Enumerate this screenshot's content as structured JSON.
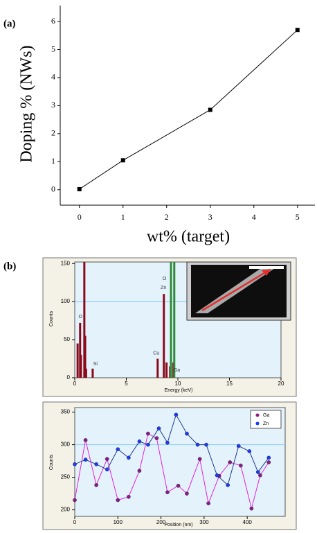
{
  "chart_data": [
    {
      "type": "line",
      "label": "(a)",
      "x_label": "wt% (target)",
      "y_label": "Doping % (NWs)",
      "x": [
        0,
        1,
        3,
        5
      ],
      "values": [
        0.02,
        1.05,
        2.85,
        5.7
      ],
      "color": "#000000",
      "xlim": [
        -0.44,
        5.4
      ],
      "ylim": [
        -0.55,
        6.57
      ],
      "xticks": [
        0,
        1,
        2,
        3,
        4,
        5
      ],
      "yticks": [
        0,
        1,
        2,
        3,
        4,
        5,
        6
      ],
      "grid": false
    },
    {
      "type": "spectrum",
      "label": "(b)",
      "x_label": "Energy (keV)",
      "y_label": "Counts",
      "x": [
        0.28,
        0.52,
        0.6,
        0.93,
        1.01,
        1.1,
        1.74,
        8.04,
        8.64,
        8.9,
        9.25,
        9.33,
        9.57,
        9.65
      ],
      "values": [
        45,
        72,
        30,
        152,
        55,
        12,
        12,
        25,
        110,
        20,
        15,
        152,
        20,
        152
      ],
      "colors": [
        "#8b0a1a",
        "#8b0a1a",
        "#8b0a1a",
        "#8b0a1a",
        "#8b0a1a",
        "#8b0a1a",
        "#8b0a1a",
        "#8b0a1a",
        "#8b0a1a",
        "#8b0a1a",
        "#8b0a1a",
        "#2e8b3a",
        "#8b0a1a",
        "#2e8b3a"
      ],
      "annotations": [
        {
          "text": "O",
          "x": 0.55,
          "y": 80
        },
        {
          "text": "Si",
          "x": 2.0,
          "y": 18
        },
        {
          "text": "Cu",
          "x": 7.9,
          "y": 32
        },
        {
          "text": "Zn",
          "x": 8.6,
          "y": 118
        },
        {
          "text": "O",
          "x": 8.7,
          "y": 130
        },
        {
          "text": "Ga",
          "x": 9.9,
          "y": 10
        }
      ],
      "xlim": [
        0,
        20
      ],
      "ylim": [
        0,
        152
      ],
      "xticks": [
        0,
        5,
        10,
        15,
        20
      ],
      "yticks": [
        0,
        50,
        100,
        150
      ],
      "ref_line": 100
    },
    {
      "type": "line",
      "x_label": "Position (nm)",
      "y_label": "Counts",
      "series": [
        {
          "name": "Ga",
          "color": "#e020e0",
          "marker_color": "#8a1a8a",
          "x": [
            0,
            25,
            50,
            75,
            100,
            125,
            150,
            170,
            190,
            215,
            240,
            260,
            290,
            310,
            335,
            360,
            385,
            410,
            430,
            450
          ],
          "values": [
            215,
            307,
            238,
            278,
            215,
            220,
            260,
            317,
            310,
            227,
            237,
            225,
            278,
            210,
            252,
            273,
            268,
            202,
            253,
            273
          ]
        },
        {
          "name": "Zn",
          "color": "#1a3a8a",
          "marker_color": "#1a3aff",
          "x": [
            0,
            25,
            50,
            75,
            100,
            125,
            150,
            170,
            195,
            215,
            235,
            260,
            285,
            305,
            330,
            355,
            380,
            405,
            425,
            450
          ],
          "values": [
            270,
            277,
            270,
            262,
            293,
            280,
            305,
            300,
            325,
            303,
            346,
            317,
            300,
            300,
            253,
            238,
            298,
            290,
            258,
            280
          ]
        }
      ],
      "xlim": [
        0,
        488
      ],
      "ylim": [
        190,
        357
      ],
      "xticks": [
        0,
        100,
        200,
        300,
        400
      ],
      "yticks": [
        200,
        250,
        300,
        350
      ],
      "ref_line": 300
    }
  ]
}
